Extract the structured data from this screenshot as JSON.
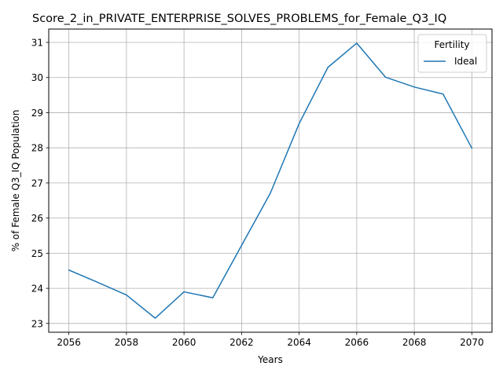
{
  "chart_data": {
    "type": "line",
    "title": "Score_2_in_PRIVATE_ENTERPRISE_SOLVES_PROBLEMS_for_Female_Q3_IQ",
    "xlabel": "Years",
    "ylabel": "% of Female Q3_IQ Population",
    "xlim": [
      2055.3,
      2070.7
    ],
    "ylim": [
      22.75,
      31.38
    ],
    "xticks": [
      2056,
      2058,
      2060,
      2062,
      2064,
      2066,
      2068,
      2070
    ],
    "yticks": [
      23,
      24,
      25,
      26,
      27,
      28,
      29,
      30,
      31
    ],
    "grid": true,
    "legend": {
      "title": "Fertility",
      "placement": "top-right"
    },
    "series": [
      {
        "name": "Ideal",
        "color": "#1f77b4",
        "x": [
          2056,
          2057,
          2058,
          2059,
          2060,
          2061,
          2062,
          2063,
          2064,
          2065,
          2066,
          2067,
          2068,
          2069,
          2070
        ],
        "y": [
          24.52,
          24.17,
          23.81,
          23.15,
          23.9,
          23.73,
          25.22,
          26.71,
          28.69,
          30.29,
          30.98,
          30.01,
          29.73,
          29.53,
          27.99
        ]
      }
    ]
  }
}
